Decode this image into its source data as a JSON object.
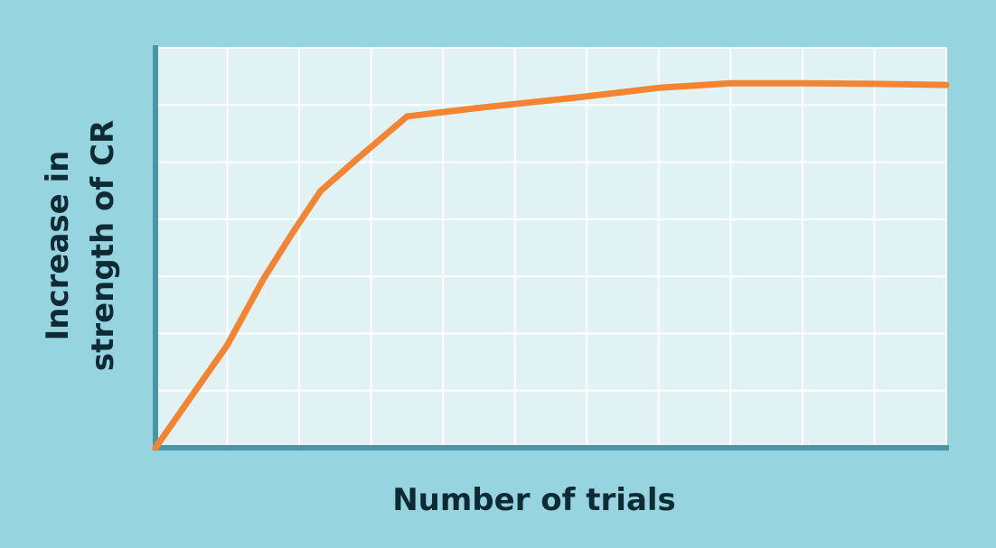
{
  "colors": {
    "background": "#96d5df",
    "plot_area": "#e0f2f4",
    "grid": "#ffffff",
    "axis": "#4a95a6",
    "curve": "#f28432",
    "text": "#0e2a35"
  },
  "chart_data": {
    "type": "line",
    "title": "",
    "xlabel": "Number of trials",
    "ylabel_lines": [
      "Increase in",
      "strength of CR"
    ],
    "xlim": [
      0,
      11
    ],
    "ylim": [
      0,
      7
    ],
    "x_gridlines": [
      1,
      2,
      3,
      4,
      5,
      6,
      7,
      8,
      9,
      10,
      11
    ],
    "y_gridlines": [
      1,
      2,
      3,
      4,
      5,
      6,
      7
    ],
    "grid": true,
    "tick_labels": false,
    "legend": "none",
    "series": [
      {
        "x": [
          0,
          0.5,
          1.0,
          1.5,
          1.9,
          2.3,
          2.8,
          3.5,
          4.5,
          6.0,
          7.0,
          8.0,
          9.0,
          10.0,
          11.0
        ],
        "y": [
          0,
          0.9,
          1.8,
          2.95,
          3.75,
          4.5,
          5.05,
          5.8,
          5.95,
          6.15,
          6.3,
          6.38,
          6.38,
          6.37,
          6.35
        ]
      }
    ]
  }
}
